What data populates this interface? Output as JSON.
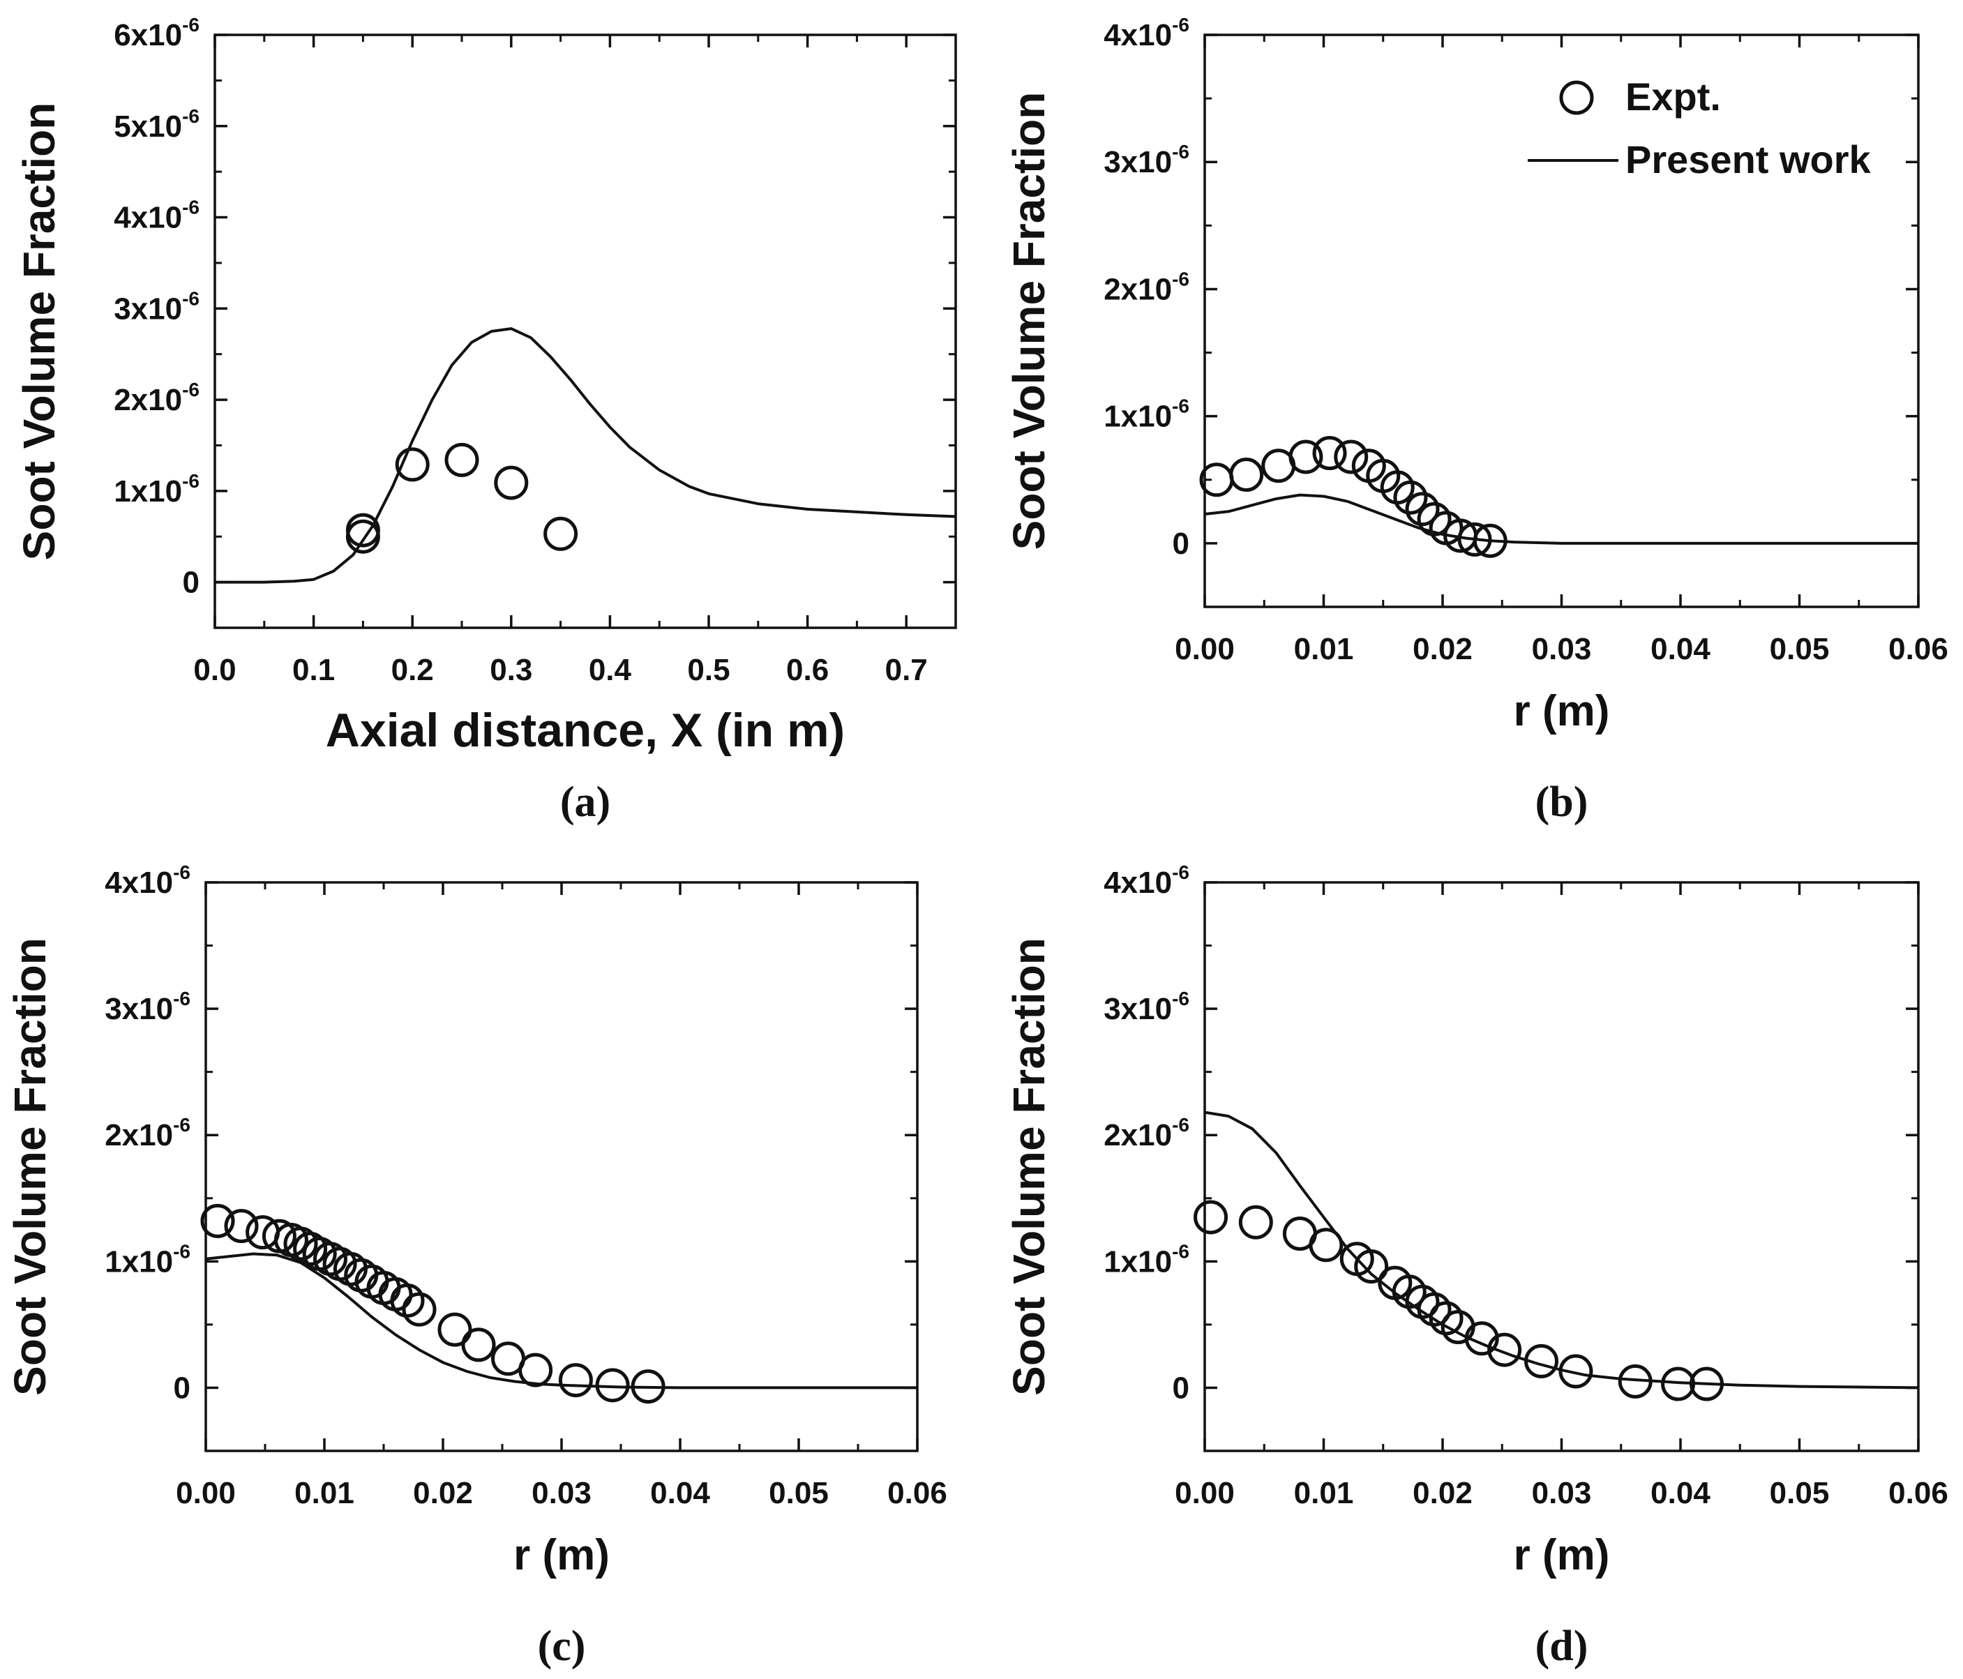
{
  "chart_data": [
    {
      "id": "a",
      "type": "scatter",
      "panel_label": "(a)",
      "xlabel": "Axial distance, X (in m)",
      "ylabel": "Soot Volume Fraction",
      "xlim": [
        0,
        0.75
      ],
      "ylim": [
        -5e-07,
        6e-06
      ],
      "xticks": [
        0,
        0.1,
        0.2,
        0.3,
        0.4,
        0.5,
        0.6,
        0.7
      ],
      "xtick_labels": [
        "0.0",
        "0.1",
        "0.2",
        "0.3",
        "0.4",
        "0.5",
        "0.6",
        "0.7"
      ],
      "yticks": [
        0,
        1e-06,
        2e-06,
        3e-06,
        4e-06,
        5e-06,
        6e-06
      ],
      "ytick_labels": [
        {
          "text": "0",
          "base": "",
          "exp": ""
        },
        {
          "text": "",
          "base": "1x10",
          "exp": "-6"
        },
        {
          "text": "",
          "base": "2x10",
          "exp": "-6"
        },
        {
          "text": "",
          "base": "3x10",
          "exp": "-6"
        },
        {
          "text": "",
          "base": "4x10",
          "exp": "-6"
        },
        {
          "text": "",
          "base": "5x10",
          "exp": "-6"
        },
        {
          "text": "",
          "base": "6x10",
          "exp": "-6"
        }
      ],
      "series": [
        {
          "name": "Present work",
          "kind": "line",
          "x": [
            0,
            0.05,
            0.08,
            0.1,
            0.12,
            0.14,
            0.16,
            0.18,
            0.2,
            0.22,
            0.24,
            0.26,
            0.28,
            0.3,
            0.32,
            0.34,
            0.36,
            0.38,
            0.4,
            0.42,
            0.45,
            0.48,
            0.5,
            0.55,
            0.6,
            0.65,
            0.7,
            0.75
          ],
          "y": [
            0,
            0,
            1e-08,
            3e-08,
            1.2e-07,
            3e-07,
            6.2e-07,
            1.05e-06,
            1.55e-06,
            2e-06,
            2.38e-06,
            2.63e-06,
            2.75e-06,
            2.78e-06,
            2.68e-06,
            2.47e-06,
            2.22e-06,
            1.95e-06,
            1.7e-06,
            1.48e-06,
            1.23e-06,
            1.05e-06,
            9.7e-07,
            8.6e-07,
            8e-07,
            7.7e-07,
            7.4e-07,
            7.2e-07
          ]
        },
        {
          "name": "Expt.",
          "kind": "markers",
          "x": [
            0.15,
            0.15,
            0.2,
            0.25,
            0.3,
            0.35
          ],
          "y": [
            5e-07,
            5.7e-07,
            1.29e-06,
            1.34e-06,
            1.09e-06,
            5.3e-07
          ]
        }
      ]
    },
    {
      "id": "b",
      "type": "scatter",
      "panel_label": "(b)",
      "xlabel": "r (m)",
      "ylabel": "Soot Volume Fraction",
      "xlim": [
        0,
        0.06
      ],
      "ylim": [
        -5e-07,
        4e-06
      ],
      "xticks": [
        0,
        0.01,
        0.02,
        0.03,
        0.04,
        0.05,
        0.06
      ],
      "xtick_labels": [
        "0.00",
        "0.01",
        "0.02",
        "0.03",
        "0.04",
        "0.05",
        "0.06"
      ],
      "yticks": [
        0,
        1e-06,
        2e-06,
        3e-06,
        4e-06
      ],
      "ytick_labels": [
        {
          "text": "0",
          "base": "",
          "exp": ""
        },
        {
          "text": "",
          "base": "1x10",
          "exp": "-6"
        },
        {
          "text": "",
          "base": "2x10",
          "exp": "-6"
        },
        {
          "text": "",
          "base": "3x10",
          "exp": "-6"
        },
        {
          "text": "",
          "base": "4x10",
          "exp": "-6"
        }
      ],
      "legend": {
        "position": "top-right",
        "entries": [
          "Expt.",
          "Present work"
        ]
      },
      "series": [
        {
          "name": "Present work",
          "kind": "line",
          "x": [
            0,
            0.002,
            0.004,
            0.006,
            0.008,
            0.01,
            0.012,
            0.014,
            0.016,
            0.018,
            0.02,
            0.022,
            0.024,
            0.026,
            0.03,
            0.04,
            0.05,
            0.06
          ],
          "y": [
            2.3e-07,
            2.5e-07,
            3e-07,
            3.5e-07,
            3.8e-07,
            3.7e-07,
            3.3e-07,
            2.6e-07,
            1.9e-07,
            1.2e-07,
            7e-08,
            4e-08,
            2e-08,
            1e-08,
            0,
            0,
            0,
            0
          ]
        },
        {
          "name": "Expt.",
          "kind": "markers",
          "x": [
            0.001,
            0.0035,
            0.0062,
            0.0085,
            0.0105,
            0.0123,
            0.0138,
            0.015,
            0.0162,
            0.0173,
            0.0183,
            0.0193,
            0.0203,
            0.0215,
            0.0227,
            0.024
          ],
          "y": [
            5e-07,
            5.4e-07,
            6.1e-07,
            6.8e-07,
            7.1e-07,
            6.8e-07,
            6.1e-07,
            5.3e-07,
            4.4e-07,
            3.6e-07,
            2.7e-07,
            1.9e-07,
            1.2e-07,
            6e-08,
            3e-08,
            2e-08
          ]
        }
      ]
    },
    {
      "id": "c",
      "type": "scatter",
      "panel_label": "(c)",
      "xlabel": "r (m)",
      "ylabel": "Soot Volume Fraction",
      "xlim": [
        0,
        0.06
      ],
      "ylim": [
        -5e-07,
        4e-06
      ],
      "xticks": [
        0,
        0.01,
        0.02,
        0.03,
        0.04,
        0.05,
        0.06
      ],
      "xtick_labels": [
        "0.00",
        "0.01",
        "0.02",
        "0.03",
        "0.04",
        "0.05",
        "0.06"
      ],
      "yticks": [
        0,
        1e-06,
        2e-06,
        3e-06,
        4e-06
      ],
      "ytick_labels": [
        {
          "text": "0",
          "base": "",
          "exp": ""
        },
        {
          "text": "",
          "base": "1x10",
          "exp": "-6"
        },
        {
          "text": "",
          "base": "2x10",
          "exp": "-6"
        },
        {
          "text": "",
          "base": "3x10",
          "exp": "-6"
        },
        {
          "text": "",
          "base": "4x10",
          "exp": "-6"
        }
      ],
      "series": [
        {
          "name": "Present work",
          "kind": "line",
          "x": [
            0,
            0.002,
            0.004,
            0.006,
            0.008,
            0.01,
            0.012,
            0.014,
            0.016,
            0.018,
            0.02,
            0.022,
            0.024,
            0.026,
            0.028,
            0.03,
            0.035,
            0.04,
            0.05,
            0.06
          ],
          "y": [
            1.02e-06,
            1.04e-06,
            1.06e-06,
            1.05e-06,
            9.9e-07,
            8.7e-07,
            7.2e-07,
            5.6e-07,
            4.2e-07,
            3e-07,
            2e-07,
            1.3e-07,
            8e-08,
            5e-08,
            3e-08,
            2e-08,
            5e-09,
            0,
            0,
            0
          ]
        },
        {
          "name": "Expt.",
          "kind": "markers",
          "x": [
            0.001,
            0.003,
            0.0048,
            0.0062,
            0.0072,
            0.008,
            0.0088,
            0.0096,
            0.0105,
            0.0113,
            0.0122,
            0.0131,
            0.014,
            0.015,
            0.016,
            0.017,
            0.018,
            0.021,
            0.023,
            0.0255,
            0.0278,
            0.0312,
            0.0343,
            0.0373
          ],
          "y": [
            1.32e-06,
            1.28e-06,
            1.23e-06,
            1.2e-06,
            1.17e-06,
            1.14e-06,
            1.1e-06,
            1.06e-06,
            1.02e-06,
            9.8e-07,
            9.4e-07,
            8.9e-07,
            8.4e-07,
            7.9e-07,
            7.4e-07,
            6.9e-07,
            6.2e-07,
            4.6e-07,
            3.4e-07,
            2.3e-07,
            1.4e-07,
            6e-08,
            2e-08,
            1e-08
          ]
        }
      ]
    },
    {
      "id": "d",
      "type": "scatter",
      "panel_label": "(d)",
      "xlabel": "r (m)",
      "ylabel": "Soot Volume Fraction",
      "xlim": [
        0,
        0.06
      ],
      "ylim": [
        -5e-07,
        4e-06
      ],
      "xticks": [
        0,
        0.01,
        0.02,
        0.03,
        0.04,
        0.05,
        0.06
      ],
      "xtick_labels": [
        "0.00",
        "0.01",
        "0.02",
        "0.03",
        "0.04",
        "0.05",
        "0.06"
      ],
      "yticks": [
        0,
        1e-06,
        2e-06,
        3e-06,
        4e-06
      ],
      "ytick_labels": [
        {
          "text": "0",
          "base": "",
          "exp": ""
        },
        {
          "text": "",
          "base": "1x10",
          "exp": "-6"
        },
        {
          "text": "",
          "base": "2x10",
          "exp": "-6"
        },
        {
          "text": "",
          "base": "3x10",
          "exp": "-6"
        },
        {
          "text": "",
          "base": "4x10",
          "exp": "-6"
        }
      ],
      "series": [
        {
          "name": "Present work",
          "kind": "line",
          "x": [
            0,
            0.002,
            0.004,
            0.006,
            0.008,
            0.01,
            0.012,
            0.014,
            0.016,
            0.018,
            0.02,
            0.022,
            0.024,
            0.026,
            0.028,
            0.03,
            0.032,
            0.035,
            0.04,
            0.045,
            0.05,
            0.06
          ],
          "y": [
            2.18e-06,
            2.15e-06,
            2.05e-06,
            1.86e-06,
            1.6e-06,
            1.35e-06,
            1.1e-06,
            9e-07,
            7.5e-07,
            6.2e-07,
            5e-07,
            4e-07,
            3.2e-07,
            2.5e-07,
            1.9e-07,
            1.4e-07,
            1e-07,
            7e-08,
            4e-08,
            2e-08,
            1e-08,
            0
          ]
        },
        {
          "name": "Expt.",
          "kind": "markers",
          "x": [
            0.0005,
            0.0043,
            0.008,
            0.0102,
            0.0128,
            0.014,
            0.016,
            0.0172,
            0.0183,
            0.0193,
            0.0203,
            0.0213,
            0.0233,
            0.0252,
            0.0283,
            0.0312,
            0.0362,
            0.0398,
            0.0422
          ],
          "y": [
            1.35e-06,
            1.31e-06,
            1.22e-06,
            1.13e-06,
            1.02e-06,
            9.6e-07,
            8.3e-07,
            7.6e-07,
            6.8e-07,
            6.2e-07,
            5.5e-07,
            4.8e-07,
            3.9e-07,
            3e-07,
            2.1e-07,
            1.3e-07,
            5e-08,
            3e-08,
            3e-08
          ]
        }
      ]
    }
  ]
}
